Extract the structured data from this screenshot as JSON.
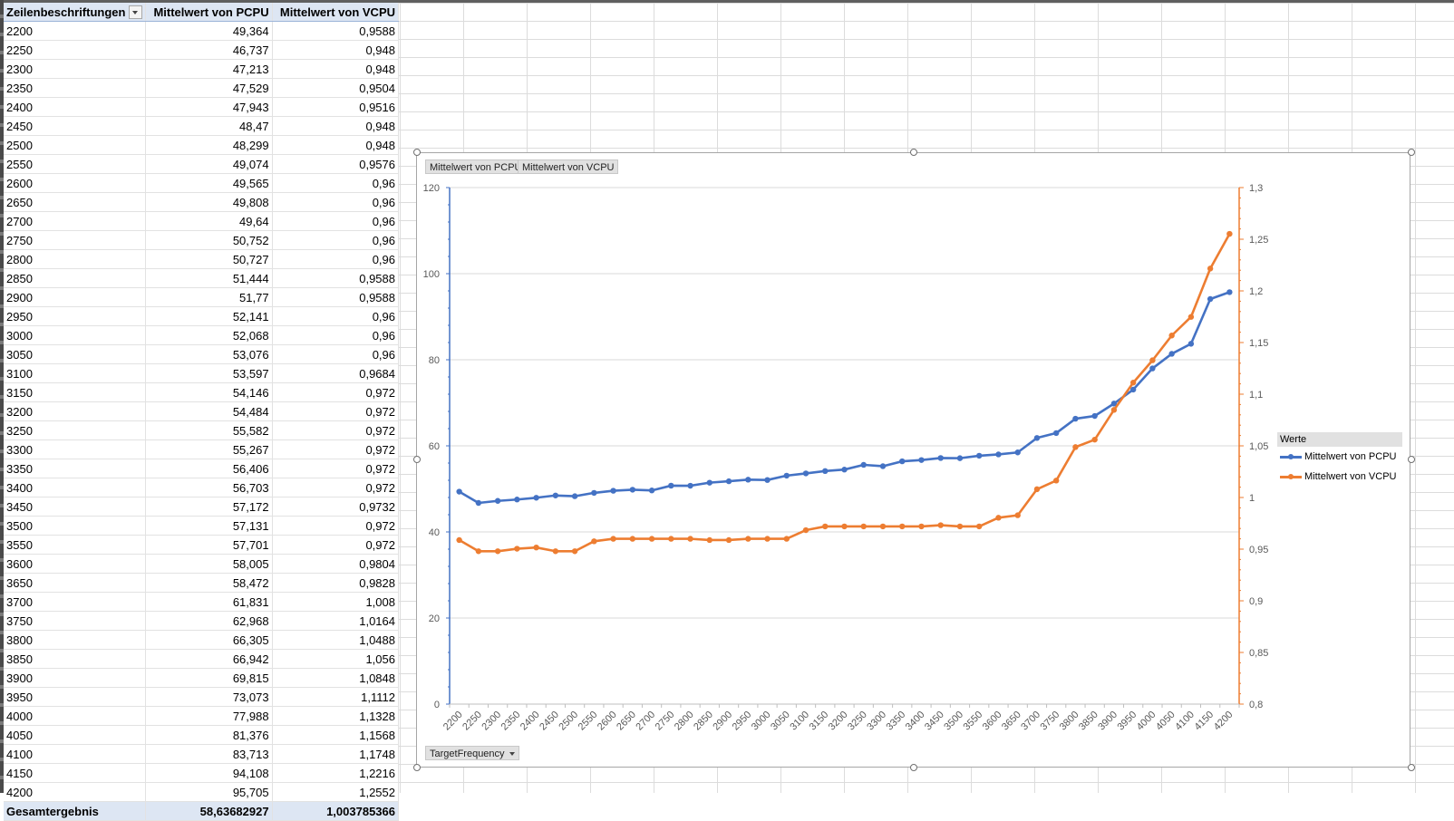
{
  "pivot": {
    "headers": {
      "row_label": "Zeilenbeschriftungen",
      "pcpu": "Mittelwert von PCPU",
      "vcpu": "Mittelwert von VCPU"
    },
    "rows": [
      {
        "f": "2200",
        "p": "49,364",
        "v": "0,9588"
      },
      {
        "f": "2250",
        "p": "46,737",
        "v": "0,948"
      },
      {
        "f": "2300",
        "p": "47,213",
        "v": "0,948"
      },
      {
        "f": "2350",
        "p": "47,529",
        "v": "0,9504"
      },
      {
        "f": "2400",
        "p": "47,943",
        "v": "0,9516"
      },
      {
        "f": "2450",
        "p": "48,47",
        "v": "0,948"
      },
      {
        "f": "2500",
        "p": "48,299",
        "v": "0,948"
      },
      {
        "f": "2550",
        "p": "49,074",
        "v": "0,9576"
      },
      {
        "f": "2600",
        "p": "49,565",
        "v": "0,96"
      },
      {
        "f": "2650",
        "p": "49,808",
        "v": "0,96"
      },
      {
        "f": "2700",
        "p": "49,64",
        "v": "0,96"
      },
      {
        "f": "2750",
        "p": "50,752",
        "v": "0,96"
      },
      {
        "f": "2800",
        "p": "50,727",
        "v": "0,96"
      },
      {
        "f": "2850",
        "p": "51,444",
        "v": "0,9588"
      },
      {
        "f": "2900",
        "p": "51,77",
        "v": "0,9588"
      },
      {
        "f": "2950",
        "p": "52,141",
        "v": "0,96"
      },
      {
        "f": "3000",
        "p": "52,068",
        "v": "0,96"
      },
      {
        "f": "3050",
        "p": "53,076",
        "v": "0,96"
      },
      {
        "f": "3100",
        "p": "53,597",
        "v": "0,9684"
      },
      {
        "f": "3150",
        "p": "54,146",
        "v": "0,972"
      },
      {
        "f": "3200",
        "p": "54,484",
        "v": "0,972"
      },
      {
        "f": "3250",
        "p": "55,582",
        "v": "0,972"
      },
      {
        "f": "3300",
        "p": "55,267",
        "v": "0,972"
      },
      {
        "f": "3350",
        "p": "56,406",
        "v": "0,972"
      },
      {
        "f": "3400",
        "p": "56,703",
        "v": "0,972"
      },
      {
        "f": "3450",
        "p": "57,172",
        "v": "0,9732"
      },
      {
        "f": "3500",
        "p": "57,131",
        "v": "0,972"
      },
      {
        "f": "3550",
        "p": "57,701",
        "v": "0,972"
      },
      {
        "f": "3600",
        "p": "58,005",
        "v": "0,9804"
      },
      {
        "f": "3650",
        "p": "58,472",
        "v": "0,9828"
      },
      {
        "f": "3700",
        "p": "61,831",
        "v": "1,008"
      },
      {
        "f": "3750",
        "p": "62,968",
        "v": "1,0164"
      },
      {
        "f": "3800",
        "p": "66,305",
        "v": "1,0488"
      },
      {
        "f": "3850",
        "p": "66,942",
        "v": "1,056"
      },
      {
        "f": "3900",
        "p": "69,815",
        "v": "1,0848"
      },
      {
        "f": "3950",
        "p": "73,073",
        "v": "1,1112"
      },
      {
        "f": "4000",
        "p": "77,988",
        "v": "1,1328"
      },
      {
        "f": "4050",
        "p": "81,376",
        "v": "1,1568"
      },
      {
        "f": "4100",
        "p": "83,713",
        "v": "1,1748"
      },
      {
        "f": "4150",
        "p": "94,108",
        "v": "1,2216"
      },
      {
        "f": "4200",
        "p": "95,705",
        "v": "1,2552"
      }
    ],
    "total": {
      "label": "Gesamtergebnis",
      "p": "58,63682927",
      "v": "1,003785366"
    }
  },
  "chart": {
    "value_field_buttons": [
      "Mittelwert von PCPU",
      "Mittelwert von VCPU"
    ],
    "axis_field_button": "TargetFrequency",
    "legend_title": "Werte",
    "colors": {
      "pcpu": "#4472c4",
      "vcpu": "#ed7d31",
      "grid": "#d9d9d9",
      "axis_text": "#595959"
    }
  },
  "chart_data": {
    "type": "line",
    "title": "",
    "xlabel": "",
    "ylabel": "",
    "categories": [
      "2200",
      "2250",
      "2300",
      "2350",
      "2400",
      "2450",
      "2500",
      "2550",
      "2600",
      "2650",
      "2700",
      "2750",
      "2800",
      "2850",
      "2900",
      "2950",
      "3000",
      "3050",
      "3100",
      "3150",
      "3200",
      "3250",
      "3300",
      "3350",
      "3400",
      "3450",
      "3500",
      "3550",
      "3600",
      "3650",
      "3700",
      "3750",
      "3800",
      "3850",
      "3900",
      "3950",
      "4000",
      "4050",
      "4100",
      "4150",
      "4200"
    ],
    "series": [
      {
        "name": "Mittelwert von PCPU",
        "axis": "left",
        "values": [
          49.364,
          46.737,
          47.213,
          47.529,
          47.943,
          48.47,
          48.299,
          49.074,
          49.565,
          49.808,
          49.64,
          50.752,
          50.727,
          51.444,
          51.77,
          52.141,
          52.068,
          53.076,
          53.597,
          54.146,
          54.484,
          55.582,
          55.267,
          56.406,
          56.703,
          57.172,
          57.131,
          57.701,
          58.005,
          58.472,
          61.831,
          62.968,
          66.305,
          66.942,
          69.815,
          73.073,
          77.988,
          81.376,
          83.713,
          94.108,
          95.705
        ]
      },
      {
        "name": "Mittelwert von VCPU",
        "axis": "right",
        "values": [
          0.9588,
          0.948,
          0.948,
          0.9504,
          0.9516,
          0.948,
          0.948,
          0.9576,
          0.96,
          0.96,
          0.96,
          0.96,
          0.96,
          0.9588,
          0.9588,
          0.96,
          0.96,
          0.96,
          0.9684,
          0.972,
          0.972,
          0.972,
          0.972,
          0.972,
          0.972,
          0.9732,
          0.972,
          0.972,
          0.9804,
          0.9828,
          1.008,
          1.0164,
          1.0488,
          1.056,
          1.0848,
          1.1112,
          1.1328,
          1.1568,
          1.1748,
          1.2216,
          1.2552
        ]
      }
    ],
    "y_left": {
      "min": 0,
      "max": 120,
      "ticks": [
        "0",
        "20",
        "40",
        "60",
        "80",
        "100",
        "120"
      ]
    },
    "y_right": {
      "min": 0.8,
      "max": 1.3,
      "ticks": [
        "0,8",
        "0,85",
        "0,9",
        "0,95",
        "1",
        "1,05",
        "1,1",
        "1,15",
        "1,2",
        "1,25",
        "1,3"
      ]
    },
    "grid": true,
    "legend_position": "right"
  }
}
